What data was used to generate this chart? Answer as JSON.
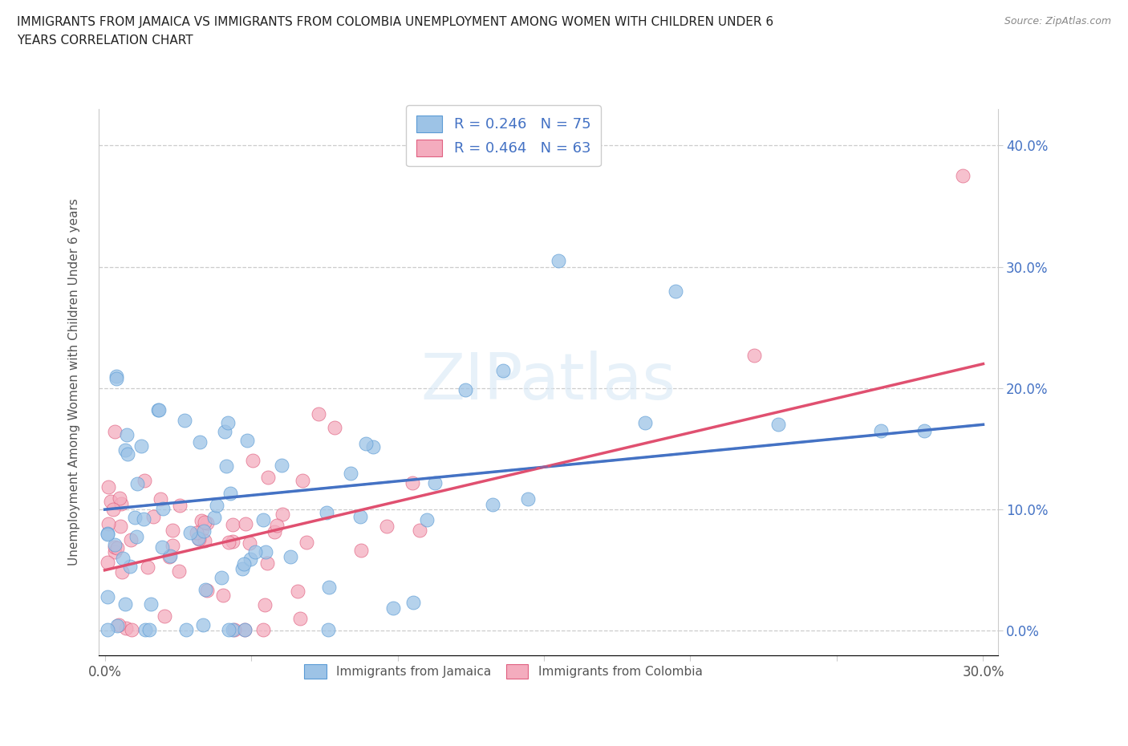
{
  "title_line1": "IMMIGRANTS FROM JAMAICA VS IMMIGRANTS FROM COLOMBIA UNEMPLOYMENT AMONG WOMEN WITH CHILDREN UNDER 6",
  "title_line2": "YEARS CORRELATION CHART",
  "source": "Source: ZipAtlas.com",
  "xlim": [
    -0.002,
    0.305
  ],
  "ylim": [
    -0.02,
    0.43
  ],
  "jamaica_color": "#9DC3E6",
  "jamaica_edge": "#5B9BD5",
  "colombia_color": "#F4ACBE",
  "colombia_edge": "#E06080",
  "jamaica_line_color": "#4472C4",
  "colombia_line_color": "#E05070",
  "jamaica_R": 0.246,
  "jamaica_N": 75,
  "colombia_R": 0.464,
  "colombia_N": 63,
  "watermark": "ZIPatlas",
  "background": "#FFFFFF",
  "grid_color": "#CCCCCC",
  "ytick_color": "#4472C4",
  "ylabel_color": "#555555",
  "title_color": "#222222",
  "source_color": "#888888",
  "legend_text_color": "#4472C4",
  "bottom_legend_color": "#555555"
}
